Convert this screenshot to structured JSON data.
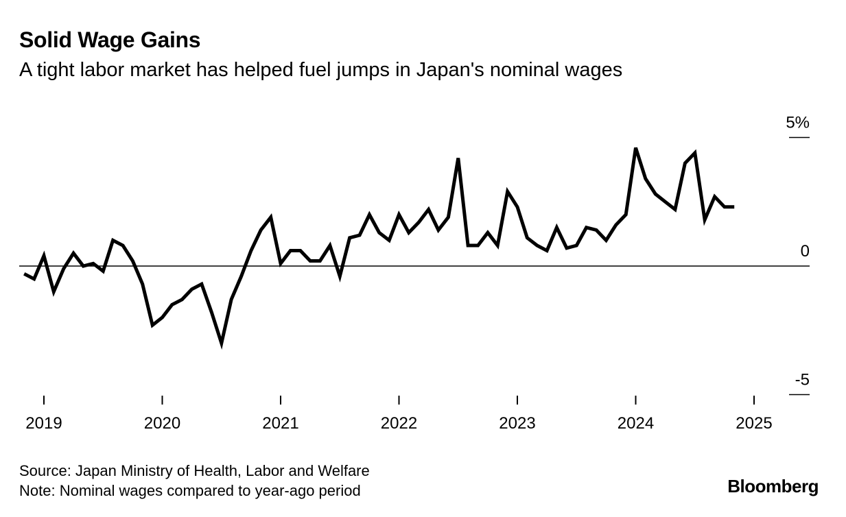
{
  "header": {
    "title": "Solid Wage Gains",
    "subtitle": "A tight labor market has helped fuel jumps in Japan's nominal wages"
  },
  "footer": {
    "source": "Source: Japan Ministry of Health, Labor and Welfare",
    "note": "Note: Nominal wages compared to year-ago period",
    "brand": "Bloomberg"
  },
  "chart_data": {
    "type": "line",
    "title": "Solid Wage Gains",
    "xlabel": "",
    "ylabel": "",
    "ylim": [
      -5,
      5
    ],
    "xlim": [
      2019,
      2025.5
    ],
    "grid": false,
    "y_ticks": [
      {
        "value": 5,
        "label": "5%"
      },
      {
        "value": 0,
        "label": "0"
      },
      {
        "value": -5,
        "label": "-5"
      }
    ],
    "x_ticks": [
      {
        "value": 2019,
        "label": "2019"
      },
      {
        "value": 2020,
        "label": "2020"
      },
      {
        "value": 2021,
        "label": "2021"
      },
      {
        "value": 2022,
        "label": "2022"
      },
      {
        "value": 2023,
        "label": "2023"
      },
      {
        "value": 2024,
        "label": "2024"
      },
      {
        "value": 2025,
        "label": "2025"
      }
    ],
    "series": [
      {
        "name": "Nominal wages, year-over-year change",
        "color": "#000000",
        "points": [
          [
            2018.833,
            -0.3
          ],
          [
            2018.917,
            -0.5
          ],
          [
            2019.0,
            0.4
          ],
          [
            2019.083,
            -1.0
          ],
          [
            2019.167,
            -0.1
          ],
          [
            2019.25,
            0.5
          ],
          [
            2019.333,
            0.0
          ],
          [
            2019.417,
            0.1
          ],
          [
            2019.5,
            -0.2
          ],
          [
            2019.583,
            1.0
          ],
          [
            2019.667,
            0.8
          ],
          [
            2019.75,
            0.2
          ],
          [
            2019.833,
            -0.7
          ],
          [
            2019.917,
            -2.3
          ],
          [
            2020.0,
            -2.0
          ],
          [
            2020.083,
            -1.5
          ],
          [
            2020.167,
            -1.3
          ],
          [
            2020.25,
            -0.9
          ],
          [
            2020.333,
            -0.7
          ],
          [
            2020.417,
            -1.8
          ],
          [
            2020.5,
            -3.0
          ],
          [
            2020.583,
            -1.3
          ],
          [
            2020.667,
            -0.4
          ],
          [
            2020.75,
            0.6
          ],
          [
            2020.833,
            1.4
          ],
          [
            2020.917,
            1.9
          ],
          [
            2021.0,
            0.1
          ],
          [
            2021.083,
            0.6
          ],
          [
            2021.167,
            0.6
          ],
          [
            2021.25,
            0.2
          ],
          [
            2021.333,
            0.2
          ],
          [
            2021.417,
            0.8
          ],
          [
            2021.5,
            -0.4
          ],
          [
            2021.583,
            1.1
          ],
          [
            2021.667,
            1.2
          ],
          [
            2021.75,
            2.0
          ],
          [
            2021.833,
            1.3
          ],
          [
            2021.917,
            1.0
          ],
          [
            2022.0,
            2.0
          ],
          [
            2022.083,
            1.3
          ],
          [
            2022.167,
            1.7
          ],
          [
            2022.25,
            2.2
          ],
          [
            2022.333,
            1.4
          ],
          [
            2022.417,
            1.9
          ],
          [
            2022.5,
            4.2
          ],
          [
            2022.583,
            0.8
          ],
          [
            2022.667,
            0.8
          ],
          [
            2022.75,
            1.3
          ],
          [
            2022.833,
            0.8
          ],
          [
            2022.917,
            2.9
          ],
          [
            2023.0,
            2.3
          ],
          [
            2023.083,
            1.1
          ],
          [
            2023.167,
            0.8
          ],
          [
            2023.25,
            0.6
          ],
          [
            2023.333,
            1.5
          ],
          [
            2023.417,
            0.7
          ],
          [
            2023.5,
            0.8
          ],
          [
            2023.583,
            1.5
          ],
          [
            2023.667,
            1.4
          ],
          [
            2023.75,
            1.0
          ],
          [
            2023.833,
            1.6
          ],
          [
            2023.917,
            2.0
          ],
          [
            2024.0,
            4.6
          ],
          [
            2024.083,
            3.4
          ],
          [
            2024.167,
            2.8
          ],
          [
            2024.25,
            2.5
          ],
          [
            2024.333,
            2.2
          ],
          [
            2024.417,
            4.0
          ],
          [
            2024.5,
            4.4
          ],
          [
            2024.583,
            1.8
          ],
          [
            2024.667,
            2.7
          ],
          [
            2024.75,
            2.3
          ],
          [
            2024.833,
            2.3
          ]
        ]
      }
    ]
  }
}
